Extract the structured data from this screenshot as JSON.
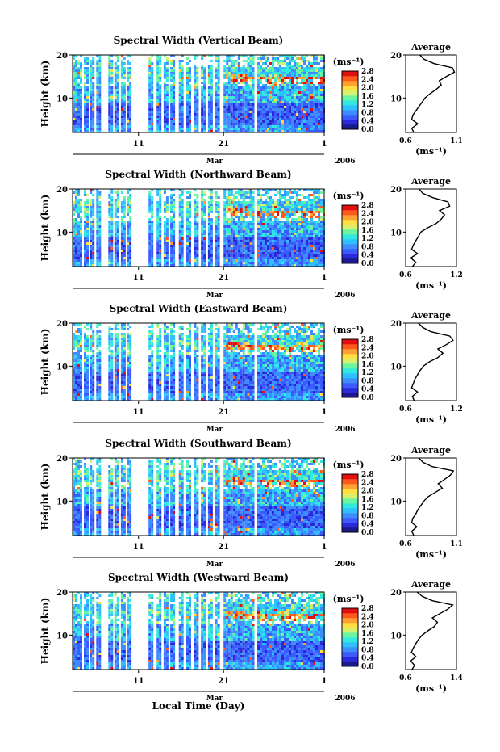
{
  "figure": {
    "xlabel": "Local Time (Day)",
    "month_label": "Mar",
    "year_label": "2006",
    "colorbar_unit": "(ms⁻¹)",
    "colorbar_ticks": [
      "0.0",
      "0.4",
      "0.8",
      "1.2",
      "1.6",
      "2.0",
      "2.4",
      "2.8"
    ],
    "avg_title": "Average",
    "avg_xunit": "(ms⁻¹)"
  },
  "colors": {
    "scale": [
      "#1a1a8c",
      "#2a2ad8",
      "#3b5bff",
      "#3f8cff",
      "#2fc0ff",
      "#33e8e0",
      "#6cf5a0",
      "#d8f070",
      "#ffe040",
      "#ffa030",
      "#ff5a1e",
      "#e01010"
    ]
  },
  "chart_data": [
    {
      "type": "heatmap",
      "title": "Spectral Width (Vertical Beam)",
      "ylabel": "Height (km)",
      "xlabel": "Local Time (Day)",
      "x_ticks": [
        "11",
        "21",
        "1"
      ],
      "y_ticks": [
        "10",
        "20"
      ],
      "ylim": [
        2,
        20
      ],
      "colorbar_range": [
        0.0,
        2.8
      ],
      "colorbar_ticks": [
        "0.0",
        "0.4",
        "0.8",
        "1.2",
        "1.6",
        "2.0",
        "2.4",
        "2.8"
      ],
      "average_profile": {
        "title": "Average",
        "x_ticks": [
          "0.6",
          "1.1"
        ],
        "xlim": [
          0.6,
          1.1
        ],
        "y_ticks": [
          "10",
          "20"
        ],
        "heights": [
          2,
          3,
          4,
          5,
          6,
          7,
          8,
          9,
          10,
          11,
          12,
          13,
          14,
          15,
          16,
          17,
          18,
          19,
          20
        ],
        "values": [
          0.68,
          0.66,
          0.72,
          0.66,
          0.67,
          0.7,
          0.73,
          0.76,
          0.79,
          0.84,
          0.9,
          0.95,
          0.93,
          1.0,
          1.08,
          1.06,
          0.88,
          0.78,
          0.74
        ]
      }
    },
    {
      "type": "heatmap",
      "title": "Spectral Width (Northward Beam)",
      "ylabel": "Height (km)",
      "xlabel": "Local Time (Day)",
      "x_ticks": [
        "11",
        "21",
        "1"
      ],
      "y_ticks": [
        "10",
        "20"
      ],
      "ylim": [
        2,
        20
      ],
      "colorbar_range": [
        0.0,
        2.8
      ],
      "colorbar_ticks": [
        "0.0",
        "0.4",
        "0.8",
        "1.2",
        "1.6",
        "2.0",
        "2.4",
        "2.8"
      ],
      "average_profile": {
        "title": "Average",
        "x_ticks": [
          "0.6",
          "1.2"
        ],
        "xlim": [
          0.6,
          1.2
        ],
        "y_ticks": [
          "10",
          "20"
        ],
        "heights": [
          2,
          3,
          4,
          5,
          6,
          7,
          8,
          9,
          10,
          11,
          12,
          13,
          14,
          15,
          16,
          17,
          18,
          19,
          20
        ],
        "values": [
          0.68,
          0.72,
          0.66,
          0.74,
          0.67,
          0.69,
          0.72,
          0.75,
          0.78,
          0.86,
          0.96,
          1.02,
          1.06,
          1.0,
          1.12,
          1.1,
          0.92,
          0.8,
          0.76
        ]
      }
    },
    {
      "type": "heatmap",
      "title": "Spectral Width (Eastward Beam)",
      "ylabel": "Height (km)",
      "xlabel": "Local Time (Day)",
      "x_ticks": [
        "11",
        "21",
        "1"
      ],
      "y_ticks": [
        "10",
        "20"
      ],
      "ylim": [
        2,
        20
      ],
      "colorbar_range": [
        0.0,
        2.8
      ],
      "colorbar_ticks": [
        "0.0",
        "0.4",
        "0.8",
        "1.2",
        "1.6",
        "2.0",
        "2.4",
        "2.8"
      ],
      "average_profile": {
        "title": "Average",
        "x_ticks": [
          "0.6",
          "1.2"
        ],
        "xlim": [
          0.6,
          1.2
        ],
        "y_ticks": [
          "10",
          "20"
        ],
        "heights": [
          2,
          3,
          4,
          5,
          6,
          7,
          8,
          9,
          10,
          11,
          12,
          13,
          14,
          15,
          16,
          17,
          18,
          19,
          20
        ],
        "values": [
          0.7,
          0.68,
          0.74,
          0.67,
          0.69,
          0.71,
          0.74,
          0.77,
          0.81,
          0.88,
          0.98,
          1.04,
          0.98,
          1.08,
          1.16,
          1.12,
          0.9,
          0.8,
          0.75
        ]
      }
    },
    {
      "type": "heatmap",
      "title": "Spectral Width (Southward Beam)",
      "ylabel": "Height (km)",
      "xlabel": "Local Time (Day)",
      "x_ticks": [
        "11",
        "21",
        "1"
      ],
      "y_ticks": [
        "10",
        "20"
      ],
      "ylim": [
        2,
        20
      ],
      "colorbar_range": [
        0.0,
        2.8
      ],
      "colorbar_ticks": [
        "0.0",
        "0.4",
        "0.8",
        "1.2",
        "1.6",
        "2.0",
        "2.4",
        "2.8"
      ],
      "average_profile": {
        "title": "Average",
        "x_ticks": [
          "0.6",
          "1.1"
        ],
        "xlim": [
          0.6,
          1.1
        ],
        "y_ticks": [
          "10",
          "20"
        ],
        "heights": [
          2,
          3,
          4,
          5,
          6,
          7,
          8,
          9,
          10,
          11,
          12,
          13,
          14,
          15,
          16,
          17,
          18,
          19,
          20
        ],
        "values": [
          0.68,
          0.66,
          0.71,
          0.66,
          0.67,
          0.7,
          0.72,
          0.75,
          0.78,
          0.82,
          0.89,
          0.96,
          0.92,
          0.98,
          1.04,
          1.07,
          0.86,
          0.77,
          0.73
        ]
      }
    },
    {
      "type": "heatmap",
      "title": "Spectral Width (Westward Beam)",
      "ylabel": "Height (km)",
      "xlabel": "Local Time (Day)",
      "x_ticks": [
        "11",
        "21",
        "1"
      ],
      "y_ticks": [
        "10",
        "20"
      ],
      "ylim": [
        2,
        20
      ],
      "colorbar_range": [
        0.0,
        2.8
      ],
      "colorbar_ticks": [
        "0.0",
        "0.4",
        "0.8",
        "1.2",
        "1.6",
        "2.0",
        "2.4",
        "2.8"
      ],
      "average_profile": {
        "title": "Average",
        "x_ticks": [
          "0.6",
          "1.4"
        ],
        "xlim": [
          0.6,
          1.4
        ],
        "y_ticks": [
          "10",
          "20"
        ],
        "heights": [
          2,
          3,
          4,
          5,
          6,
          7,
          8,
          9,
          10,
          11,
          12,
          13,
          14,
          15,
          16,
          17,
          18,
          19,
          20
        ],
        "values": [
          0.7,
          0.74,
          0.68,
          0.76,
          0.69,
          0.72,
          0.76,
          0.8,
          0.86,
          0.95,
          1.05,
          1.1,
          1.02,
          1.14,
          1.26,
          1.34,
          1.02,
          0.86,
          0.78
        ]
      }
    }
  ]
}
